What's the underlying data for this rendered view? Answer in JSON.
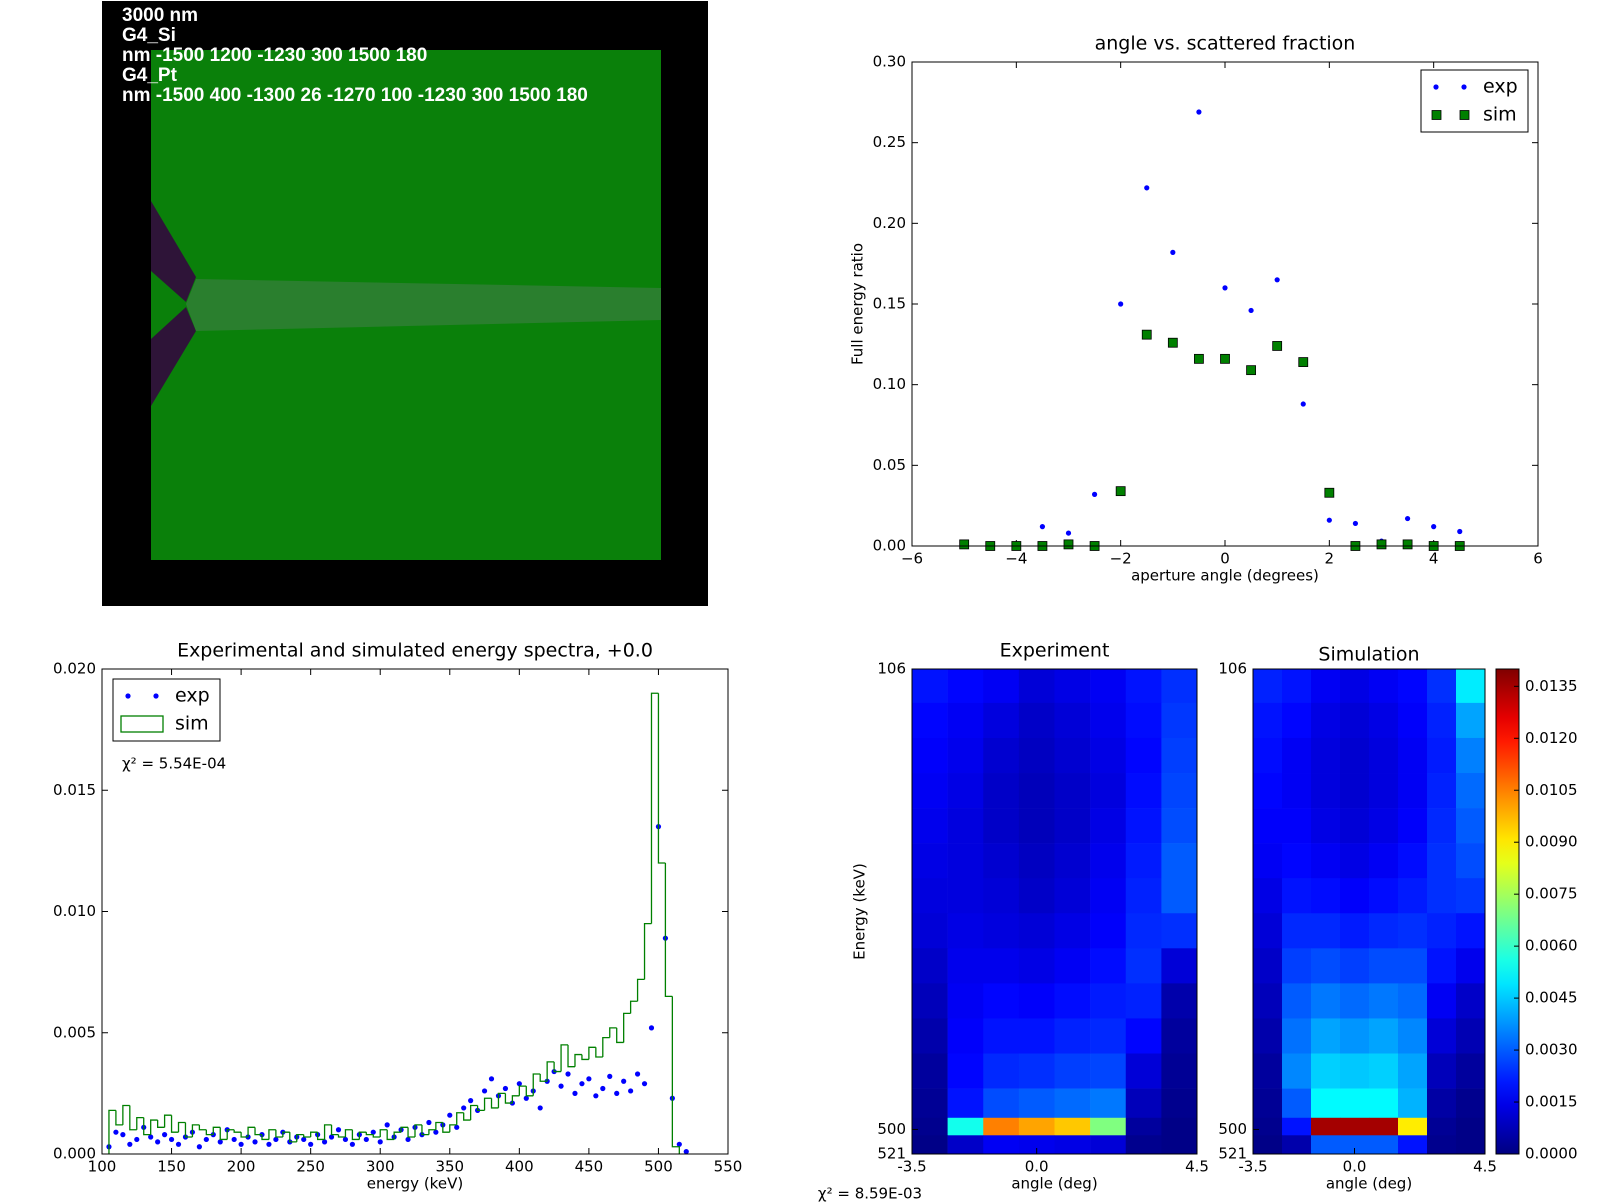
{
  "geometry": {
    "lines": [
      "3000 nm",
      "G4_Si",
      "nm -1500 1200 -1230 300 1500 180",
      "G4_Pt",
      "nm -1500 400 -1300 26 -1270 100 -1230 300 1500 180"
    ]
  },
  "chart_data": [
    {
      "type": "scatter",
      "title": "angle vs. scattered fraction",
      "xlabel": "aperture angle (degrees)",
      "ylabel": "Full energy ratio",
      "xlim": [
        -6,
        6
      ],
      "xticks": [
        {
          "value": -6,
          "label": "−6"
        },
        {
          "value": -4,
          "label": "−4"
        },
        {
          "value": -2,
          "label": "−2"
        },
        0,
        2,
        4,
        6
      ],
      "ylim": [
        0,
        0.3
      ],
      "yticks": [
        {
          "value": 0,
          "label": "0.00"
        },
        {
          "value": 0.05,
          "label": "0.05"
        },
        {
          "value": 0.1,
          "label": "0.10"
        },
        {
          "value": 0.15,
          "label": "0.15"
        },
        {
          "value": 0.2,
          "label": "0.20"
        },
        {
          "value": 0.25,
          "label": "0.25"
        },
        {
          "value": 0.3,
          "label": "0.30"
        }
      ],
      "legend": "upper right",
      "x": [
        -5,
        -4.5,
        -4,
        -3.5,
        -3,
        -2.5,
        -2,
        -1.5,
        -1,
        -0.5,
        0,
        0.5,
        1,
        1.5,
        2,
        2.5,
        3,
        3.5,
        4,
        4.5
      ],
      "series": [
        {
          "name": "exp",
          "color": "#0000ff",
          "marker": "dot",
          "values": [
            0,
            0,
            0,
            0.012,
            0.008,
            0.032,
            0.15,
            0.222,
            0.182,
            0.269,
            0.16,
            0.146,
            0.165,
            0.088,
            0.016,
            0.014,
            0.003,
            0.017,
            0.012,
            0.009
          ]
        },
        {
          "name": "sim",
          "color": "#008000",
          "marker": "square",
          "values": [
            0.001,
            0,
            0,
            0,
            0.001,
            0,
            0.034,
            0.131,
            0.126,
            0.116,
            0.116,
            0.109,
            0.124,
            0.114,
            0.033,
            0,
            0.001,
            0.001,
            0,
            0
          ]
        }
      ]
    },
    {
      "type": "histogram",
      "title": "Experimental and simulated energy spectra, +0.0",
      "xlabel": "energy (keV)",
      "annotation": "χ² = 5.54E-04",
      "legend": "upper left",
      "xlim": [
        100,
        550
      ],
      "xticks": [
        100,
        150,
        200,
        250,
        300,
        350,
        400,
        450,
        500,
        550
      ],
      "ylim": [
        0,
        0.02
      ],
      "yticks": [
        {
          "value": 0,
          "label": "0.000"
        },
        {
          "value": 0.005,
          "label": "0.005"
        },
        {
          "value": 0.01,
          "label": "0.010"
        },
        {
          "value": 0.015,
          "label": "0.015"
        },
        {
          "value": 0.02,
          "label": "0.020"
        }
      ],
      "series": [
        {
          "name": "exp",
          "color": "#0000ff",
          "marker": "dot",
          "x": [
            105,
            110,
            115,
            120,
            125,
            130,
            135,
            140,
            145,
            150,
            155,
            160,
            165,
            170,
            175,
            180,
            185,
            190,
            195,
            200,
            205,
            210,
            215,
            220,
            225,
            230,
            235,
            240,
            245,
            250,
            255,
            260,
            265,
            270,
            275,
            280,
            285,
            290,
            295,
            300,
            305,
            310,
            315,
            320,
            325,
            330,
            335,
            340,
            345,
            350,
            355,
            360,
            365,
            370,
            375,
            380,
            385,
            390,
            395,
            400,
            405,
            410,
            415,
            420,
            425,
            430,
            435,
            440,
            445,
            450,
            455,
            460,
            465,
            470,
            475,
            480,
            485,
            490,
            495,
            500,
            505,
            510,
            515,
            520
          ],
          "values": [
            0.0003,
            0.0009,
            0.0008,
            0.0004,
            0.0006,
            0.0011,
            0.0007,
            0.0005,
            0.0008,
            0.0006,
            0.0004,
            0.0007,
            0.0009,
            0.0003,
            0.0006,
            0.0008,
            0.0005,
            0.001,
            0.0006,
            0.0004,
            0.0007,
            0.0005,
            0.0008,
            0.0004,
            0.0006,
            0.0009,
            0.0005,
            0.0007,
            0.0006,
            0.0004,
            0.0008,
            0.0005,
            0.0007,
            0.001,
            0.0006,
            0.0004,
            0.0008,
            0.0006,
            0.0009,
            0.0005,
            0.0012,
            0.0007,
            0.001,
            0.0006,
            0.0011,
            0.0008,
            0.0013,
            0.0009,
            0.0012,
            0.0016,
            0.0011,
            0.0019,
            0.0022,
            0.0018,
            0.0026,
            0.0031,
            0.0024,
            0.0027,
            0.0021,
            0.0029,
            0.0023,
            0.0026,
            0.0019,
            0.003,
            0.0034,
            0.0028,
            0.0033,
            0.0025,
            0.0029,
            0.0031,
            0.0024,
            0.0027,
            0.0032,
            0.0025,
            0.003,
            0.0026,
            0.0033,
            0.0029,
            0.0052,
            0.0135,
            0.0089,
            0.0023,
            0.0004,
            0.0001
          ]
        },
        {
          "name": "sim",
          "color": "#008000",
          "marker": "step",
          "bins": [
            105,
            110,
            115,
            120,
            125,
            130,
            135,
            140,
            145,
            150,
            155,
            160,
            165,
            170,
            175,
            180,
            185,
            190,
            195,
            200,
            205,
            210,
            215,
            220,
            225,
            230,
            235,
            240,
            245,
            250,
            255,
            260,
            265,
            270,
            275,
            280,
            285,
            290,
            295,
            300,
            305,
            310,
            315,
            320,
            325,
            330,
            335,
            340,
            345,
            350,
            355,
            360,
            365,
            370,
            375,
            380,
            385,
            390,
            395,
            400,
            405,
            410,
            415,
            420,
            425,
            430,
            435,
            440,
            445,
            450,
            455,
            460,
            465,
            470,
            475,
            480,
            485,
            490,
            495,
            500,
            505,
            510,
            515
          ],
          "values": [
            0.0018,
            0.0012,
            0.002,
            0.001,
            0.0015,
            0.0008,
            0.0014,
            0.0011,
            0.0016,
            0.0009,
            0.0013,
            0.0007,
            0.0012,
            0.001,
            0.0008,
            0.0011,
            0.0006,
            0.001,
            0.0009,
            0.0007,
            0.0011,
            0.0008,
            0.0006,
            0.001,
            0.0007,
            0.0009,
            0.0005,
            0.0008,
            0.0007,
            0.0009,
            0.0006,
            0.0012,
            0.0008,
            0.0007,
            0.001,
            0.0006,
            0.0009,
            0.0008,
            0.0007,
            0.001,
            0.0006,
            0.0009,
            0.0011,
            0.0007,
            0.0012,
            0.0008,
            0.001,
            0.0013,
            0.0009,
            0.0012,
            0.0017,
            0.0014,
            0.002,
            0.0018,
            0.0023,
            0.0019,
            0.0025,
            0.0021,
            0.0024,
            0.0028,
            0.0024,
            0.0033,
            0.003,
            0.0038,
            0.0034,
            0.0045,
            0.0036,
            0.0041,
            0.0039,
            0.0044,
            0.004,
            0.0048,
            0.0052,
            0.0046,
            0.0058,
            0.0063,
            0.0072,
            0.0095,
            0.019,
            0.012,
            0.0065,
            0.0003
          ]
        }
      ]
    },
    {
      "type": "heatmap",
      "ylabel": "Energy (keV)",
      "annotation": "χ² = 8.59E-03",
      "clim": [
        0,
        0.014
      ],
      "cticks": [
        {
          "value": 0,
          "label": "0.0000"
        },
        {
          "value": 0.0015,
          "label": "0.0015"
        },
        {
          "value": 0.003,
          "label": "0.0030"
        },
        {
          "value": 0.0045,
          "label": "0.0045"
        },
        {
          "value": 0.006,
          "label": "0.0060"
        },
        {
          "value": 0.0075,
          "label": "0.0075"
        },
        {
          "value": 0.009,
          "label": "0.0090"
        },
        {
          "value": 0.0105,
          "label": "0.0105"
        },
        {
          "value": 0.012,
          "label": "0.0120"
        },
        {
          "value": 0.0135,
          "label": "0.0135"
        }
      ],
      "panels": [
        {
          "title": "Experiment",
          "xlabel": "angle (deg)",
          "xlim": [
            -3.5,
            4.5
          ],
          "xticks": [
            {
              "value": -3.5,
              "label": "-3.5"
            },
            {
              "value": 0,
              "label": "0.0"
            },
            4.5
          ],
          "ylim": [
            106,
            521
          ],
          "yticks": [
            106,
            500,
            521
          ],
          "xbins": [
            -3.5,
            -2.5,
            -1.5,
            -0.5,
            0.5,
            1.5,
            2.5,
            3.5,
            4.5
          ],
          "ybins": [
            106,
            135,
            165,
            195,
            225,
            255,
            285,
            315,
            345,
            375,
            405,
            435,
            465,
            490,
            505,
            521
          ],
          "z": [
            [
              0.002,
              0.0018,
              0.0016,
              0.0012,
              0.0014,
              0.0016,
              0.002,
              0.0024
            ],
            [
              0.0018,
              0.0016,
              0.0013,
              0.001,
              0.0012,
              0.0015,
              0.0019,
              0.0025
            ],
            [
              0.0017,
              0.0015,
              0.0011,
              0.0009,
              0.0011,
              0.0014,
              0.0018,
              0.0026
            ],
            [
              0.0016,
              0.0014,
              0.001,
              0.0008,
              0.001,
              0.0013,
              0.0019,
              0.0027
            ],
            [
              0.0015,
              0.0013,
              0.001,
              0.0008,
              0.001,
              0.0014,
              0.002,
              0.0028
            ],
            [
              0.0014,
              0.0013,
              0.0011,
              0.0009,
              0.0011,
              0.0015,
              0.0021,
              0.003
            ],
            [
              0.0013,
              0.0013,
              0.0012,
              0.001,
              0.0012,
              0.0016,
              0.0022,
              0.003
            ],
            [
              0.0012,
              0.0014,
              0.0013,
              0.0012,
              0.0014,
              0.0017,
              0.0023,
              0.0024
            ],
            [
              0.001,
              0.0015,
              0.0015,
              0.0014,
              0.0016,
              0.0019,
              0.0024,
              0.0012
            ],
            [
              0.0008,
              0.0016,
              0.0018,
              0.0017,
              0.0019,
              0.0021,
              0.0022,
              0.0006
            ],
            [
              0.0006,
              0.0017,
              0.002,
              0.002,
              0.0022,
              0.0023,
              0.0018,
              0.0004
            ],
            [
              0.0004,
              0.0018,
              0.0023,
              0.0024,
              0.0026,
              0.0027,
              0.0012,
              0.0003
            ],
            [
              0.0003,
              0.002,
              0.0028,
              0.003,
              0.0032,
              0.0034,
              0.0008,
              0.0002
            ],
            [
              0.0002,
              0.0055,
              0.0105,
              0.01,
              0.0095,
              0.007,
              0.0004,
              0.0001
            ],
            [
              0.0001,
              0.001,
              0.0016,
              0.0015,
              0.0014,
              0.0012,
              0.0002,
              0.0001
            ]
          ]
        },
        {
          "title": "Simulation",
          "xlabel": "angle (deg)",
          "xlim": [
            -3.5,
            4.5
          ],
          "xticks": [
            {
              "value": -3.5,
              "label": "-3.5"
            },
            {
              "value": 0,
              "label": "0.0"
            },
            4.5
          ],
          "ylim": [
            106,
            521
          ],
          "yticks": [
            106,
            500,
            521
          ],
          "xbins": [
            -3.5,
            -2.5,
            -1.5,
            -0.5,
            0.5,
            1.5,
            2.5,
            3.5,
            4.5
          ],
          "ybins": [
            106,
            135,
            165,
            195,
            225,
            255,
            285,
            315,
            345,
            375,
            405,
            435,
            465,
            490,
            505,
            521
          ],
          "z": [
            [
              0.0022,
              0.002,
              0.0016,
              0.0014,
              0.0016,
              0.0018,
              0.0024,
              0.005
            ],
            [
              0.002,
              0.0018,
              0.0014,
              0.0012,
              0.0014,
              0.0017,
              0.0022,
              0.004
            ],
            [
              0.0019,
              0.0016,
              0.0013,
              0.0011,
              0.0013,
              0.0016,
              0.0021,
              0.0035
            ],
            [
              0.0018,
              0.0016,
              0.0013,
              0.0011,
              0.0013,
              0.0016,
              0.0022,
              0.0032
            ],
            [
              0.0017,
              0.0017,
              0.0014,
              0.0012,
              0.0014,
              0.0017,
              0.0023,
              0.003
            ],
            [
              0.0016,
              0.0018,
              0.0016,
              0.0014,
              0.0016,
              0.0019,
              0.0024,
              0.0028
            ],
            [
              0.0014,
              0.002,
              0.0019,
              0.0017,
              0.0019,
              0.0021,
              0.0024,
              0.0025
            ],
            [
              0.0012,
              0.0023,
              0.0023,
              0.0021,
              0.0023,
              0.0024,
              0.0022,
              0.002
            ],
            [
              0.001,
              0.0026,
              0.0028,
              0.0026,
              0.0028,
              0.0028,
              0.002,
              0.0015
            ],
            [
              0.0008,
              0.003,
              0.0034,
              0.0032,
              0.0034,
              0.0032,
              0.0016,
              0.001
            ],
            [
              0.0006,
              0.0033,
              0.004,
              0.0038,
              0.004,
              0.0036,
              0.0012,
              0.0007
            ],
            [
              0.0004,
              0.0036,
              0.0046,
              0.0045,
              0.0046,
              0.004,
              0.0008,
              0.0004
            ],
            [
              0.0003,
              0.003,
              0.0052,
              0.0052,
              0.0052,
              0.0042,
              0.0005,
              0.0002
            ],
            [
              0.0002,
              0.002,
              0.0135,
              0.0135,
              0.0135,
              0.009,
              0.0003,
              0.0001
            ],
            [
              0.0001,
              0.0006,
              0.003,
              0.003,
              0.003,
              0.002,
              0.0002,
              0.0001
            ]
          ]
        }
      ]
    }
  ]
}
